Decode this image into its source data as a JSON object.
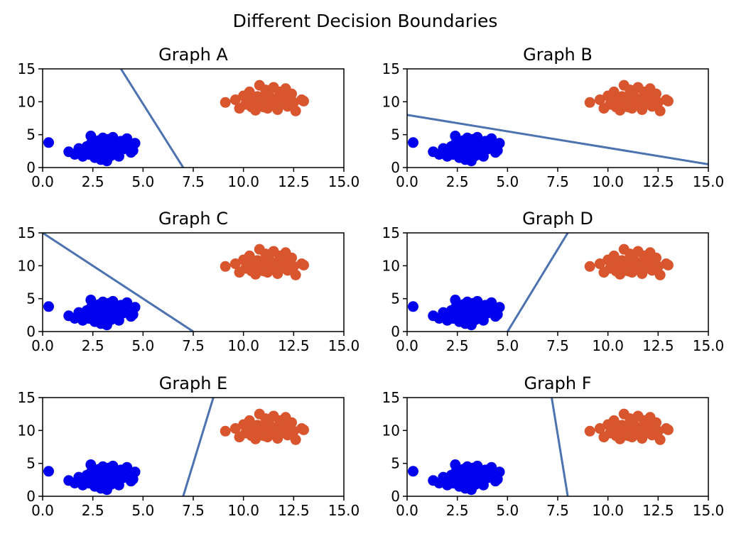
{
  "figure": {
    "suptitle": "Different Decision Boundaries"
  },
  "colors": {
    "class_a": "#0000ee",
    "class_b": "#d9552e",
    "boundary": "#4c72b0"
  },
  "chart_data": [
    {
      "type": "scatter",
      "title": "Graph A",
      "xlim": [
        0,
        15
      ],
      "ylim": [
        0,
        15
      ],
      "xticks": [
        "0.0",
        "2.5",
        "5.0",
        "7.5",
        "10.0",
        "12.5",
        "15.0"
      ],
      "yticks": [
        "0",
        "5",
        "10",
        "15"
      ],
      "boundary": [
        [
          3.9,
          15
        ],
        [
          7.0,
          0
        ]
      ]
    },
    {
      "type": "scatter",
      "title": "Graph B",
      "xlim": [
        0,
        15
      ],
      "ylim": [
        0,
        15
      ],
      "xticks": [
        "0.0",
        "2.5",
        "5.0",
        "7.5",
        "10.0",
        "12.5",
        "15.0"
      ],
      "yticks": [
        "0",
        "5",
        "10",
        "15"
      ],
      "boundary": [
        [
          0,
          8.0
        ],
        [
          15,
          0.5
        ]
      ]
    },
    {
      "type": "scatter",
      "title": "Graph C",
      "xlim": [
        0,
        15
      ],
      "ylim": [
        0,
        15
      ],
      "xticks": [
        "0.0",
        "2.5",
        "5.0",
        "7.5",
        "10.0",
        "12.5",
        "15.0"
      ],
      "yticks": [
        "0",
        "5",
        "10",
        "15"
      ],
      "boundary": [
        [
          0,
          15
        ],
        [
          7.5,
          0
        ]
      ]
    },
    {
      "type": "scatter",
      "title": "Graph D",
      "xlim": [
        0,
        15
      ],
      "ylim": [
        0,
        15
      ],
      "xticks": [
        "0.0",
        "2.5",
        "5.0",
        "7.5",
        "10.0",
        "12.5",
        "15.0"
      ],
      "yticks": [
        "0",
        "5",
        "10",
        "15"
      ],
      "boundary": [
        [
          5.0,
          0
        ],
        [
          8.0,
          15
        ]
      ]
    },
    {
      "type": "scatter",
      "title": "Graph E",
      "xlim": [
        0,
        15
      ],
      "ylim": [
        0,
        15
      ],
      "xticks": [
        "0.0",
        "2.5",
        "5.0",
        "7.5",
        "10.0",
        "12.5",
        "15.0"
      ],
      "yticks": [
        "0",
        "5",
        "10",
        "15"
      ],
      "boundary": [
        [
          7.0,
          0
        ],
        [
          8.5,
          15
        ]
      ]
    },
    {
      "type": "scatter",
      "title": "Graph F",
      "xlim": [
        0,
        15
      ],
      "ylim": [
        0,
        15
      ],
      "xticks": [
        "0.0",
        "2.5",
        "5.0",
        "7.5",
        "10.0",
        "12.5",
        "15.0"
      ],
      "yticks": [
        "0",
        "5",
        "10",
        "15"
      ],
      "boundary": [
        [
          7.2,
          15
        ],
        [
          8.0,
          0
        ]
      ]
    }
  ],
  "scatter_points": {
    "class_a": [
      [
        0.3,
        3.8
      ],
      [
        1.3,
        2.4
      ],
      [
        1.6,
        2.0
      ],
      [
        1.8,
        2.9
      ],
      [
        2.0,
        1.7
      ],
      [
        2.1,
        2.5
      ],
      [
        2.2,
        3.2
      ],
      [
        2.3,
        2.0
      ],
      [
        2.4,
        3.6
      ],
      [
        2.4,
        4.8
      ],
      [
        2.5,
        2.8
      ],
      [
        2.6,
        1.5
      ],
      [
        2.7,
        3.3
      ],
      [
        2.7,
        2.2
      ],
      [
        2.8,
        4.1
      ],
      [
        2.9,
        2.7
      ],
      [
        2.9,
        1.2
      ],
      [
        3.0,
        3.0
      ],
      [
        3.0,
        4.5
      ],
      [
        3.1,
        2.0
      ],
      [
        3.1,
        3.7
      ],
      [
        3.2,
        1.0
      ],
      [
        3.2,
        2.6
      ],
      [
        3.3,
        3.3
      ],
      [
        3.3,
        4.3
      ],
      [
        3.4,
        1.8
      ],
      [
        3.5,
        2.9
      ],
      [
        3.5,
        4.6
      ],
      [
        3.6,
        3.6
      ],
      [
        3.6,
        2.2
      ],
      [
        3.7,
        3.2
      ],
      [
        3.8,
        1.7
      ],
      [
        3.9,
        4.0
      ],
      [
        4.0,
        2.8
      ],
      [
        4.1,
        3.4
      ],
      [
        4.2,
        4.4
      ],
      [
        4.4,
        2.3
      ],
      [
        4.5,
        2.6
      ],
      [
        4.6,
        3.7
      ]
    ],
    "class_b": [
      [
        9.1,
        9.9
      ],
      [
        9.6,
        10.3
      ],
      [
        9.8,
        9.0
      ],
      [
        10.0,
        10.9
      ],
      [
        10.1,
        9.6
      ],
      [
        10.3,
        11.5
      ],
      [
        10.4,
        9.2
      ],
      [
        10.5,
        10.2
      ],
      [
        10.6,
        8.7
      ],
      [
        10.7,
        10.8
      ],
      [
        10.8,
        12.5
      ],
      [
        10.9,
        9.5
      ],
      [
        11.0,
        10.4
      ],
      [
        11.1,
        11.8
      ],
      [
        11.2,
        9.0
      ],
      [
        11.3,
        10.9
      ],
      [
        11.4,
        9.8
      ],
      [
        11.5,
        12.2
      ],
      [
        11.6,
        10.3
      ],
      [
        11.7,
        8.8
      ],
      [
        11.8,
        11.5
      ],
      [
        11.9,
        9.6
      ],
      [
        12.0,
        10.8
      ],
      [
        12.1,
        12.0
      ],
      [
        12.2,
        9.3
      ],
      [
        12.3,
        10.4
      ],
      [
        12.4,
        11.2
      ],
      [
        12.5,
        9.9
      ],
      [
        12.6,
        8.6
      ],
      [
        12.9,
        10.3
      ],
      [
        13.0,
        10.1
      ],
      [
        10.2,
        10.0
      ],
      [
        11.0,
        9.2
      ]
    ]
  }
}
